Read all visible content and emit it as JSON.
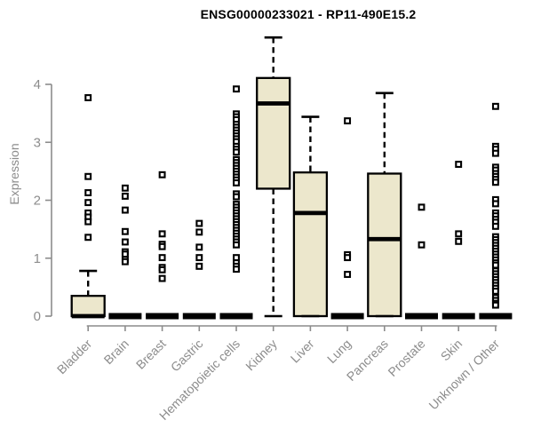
{
  "chart_data": {
    "type": "boxplot",
    "title": "ENSG00000233021 - RP11-490E15.2",
    "ylabel": "Expression",
    "yticks": [
      0,
      1,
      2,
      3,
      4
    ],
    "ylim": [
      0,
      4.85
    ],
    "grid": false,
    "legend": "none",
    "colors": {
      "box_fill": "#ECE7CC",
      "box_stroke": "#000000",
      "axis": "#8C8C8C",
      "tick_label": "#8C8C8C",
      "title": "#000000"
    },
    "categories": [
      "Bladder",
      "Brain",
      "Breast",
      "Gastric",
      "Hematopoietic cells",
      "Kidney",
      "Liver",
      "Lung",
      "Pancreas",
      "Prostate",
      "Skin",
      "Unknown / Other"
    ],
    "series": [
      {
        "name": "Bladder",
        "q1": 0,
        "median": 0,
        "q3": 0.35,
        "whisker_low": 0,
        "whisker_high": 0.78,
        "outliers": [
          3.77,
          2.41,
          2.13,
          1.96,
          1.78,
          1.71,
          1.63,
          1.36
        ]
      },
      {
        "name": "Brain",
        "q1": 0,
        "median": 0,
        "q3": 0,
        "whisker_low": 0,
        "whisker_high": 0,
        "outliers": [
          2.21,
          2.07,
          1.83,
          1.46,
          1.28,
          1.11,
          1.07,
          0.98,
          0.94
        ]
      },
      {
        "name": "Breast",
        "q1": 0,
        "median": 0,
        "q3": 0,
        "whisker_low": 0,
        "whisker_high": 0,
        "outliers": [
          2.44,
          1.42,
          1.24,
          1.2,
          1.01,
          0.84,
          0.8,
          0.65
        ]
      },
      {
        "name": "Gastric",
        "q1": 0,
        "median": 0,
        "q3": 0,
        "whisker_low": 0,
        "whisker_high": 0,
        "outliers": [
          1.6,
          1.45,
          1.19,
          1.01,
          0.86
        ]
      },
      {
        "name": "Hematopoietic cells",
        "q1": 0,
        "median": 0,
        "q3": 0,
        "whisker_low": 0,
        "whisker_high": 0,
        "outliers": [
          3.92,
          3.49,
          3.44,
          3.39,
          3.31,
          3.26,
          3.21,
          3.16,
          3.11,
          3.06,
          3.01,
          2.93,
          2.88,
          2.83,
          2.7,
          2.65,
          2.6,
          2.55,
          2.5,
          2.45,
          2.4,
          2.35,
          2.3,
          2.11,
          2.06,
          1.93,
          1.88,
          1.83,
          1.78,
          1.73,
          1.68,
          1.63,
          1.58,
          1.53,
          1.48,
          1.43,
          1.38,
          1.33,
          1.28,
          1.23,
          1.01,
          0.92,
          0.86,
          0.81
        ]
      },
      {
        "name": "Kidney",
        "q1": 2.2,
        "median": 3.67,
        "q3": 4.11,
        "whisker_low": 0,
        "whisker_high": 4.81,
        "outliers": []
      },
      {
        "name": "Liver",
        "q1": 0,
        "median": 1.78,
        "q3": 2.48,
        "whisker_low": 0,
        "whisker_high": 3.44,
        "outliers": []
      },
      {
        "name": "Lung",
        "q1": 0,
        "median": 0,
        "q3": 0,
        "whisker_low": 0,
        "whisker_high": 0,
        "outliers": [
          3.37,
          1.06,
          1.01,
          0.72
        ]
      },
      {
        "name": "Pancreas",
        "q1": 0,
        "median": 1.33,
        "q3": 2.46,
        "whisker_low": 0,
        "whisker_high": 3.85,
        "outliers": []
      },
      {
        "name": "Prostate",
        "q1": 0,
        "median": 0,
        "q3": 0,
        "whisker_low": 0,
        "whisker_high": 0,
        "outliers": [
          1.88,
          1.23
        ]
      },
      {
        "name": "Skin",
        "q1": 0,
        "median": 0,
        "q3": 0,
        "whisker_low": 0,
        "whisker_high": 0,
        "outliers": [
          2.62,
          1.42,
          1.29
        ]
      },
      {
        "name": "Unknown / Other",
        "q1": 0,
        "median": 0,
        "q3": 0,
        "whisker_low": 0,
        "whisker_high": 0,
        "outliers": [
          3.62,
          2.93,
          2.88,
          2.81,
          2.57,
          2.52,
          2.46,
          2.41,
          2.36,
          2.31,
          2.01,
          1.94,
          1.78,
          1.73,
          1.67,
          1.62,
          1.55,
          1.37,
          1.32,
          1.27,
          1.22,
          1.17,
          1.12,
          1.07,
          1.02,
          0.97,
          0.92,
          0.88,
          0.78,
          0.73,
          0.68,
          0.63,
          0.58,
          0.53,
          0.48,
          0.43,
          0.32,
          0.27,
          0.22,
          0.19
        ]
      }
    ]
  }
}
